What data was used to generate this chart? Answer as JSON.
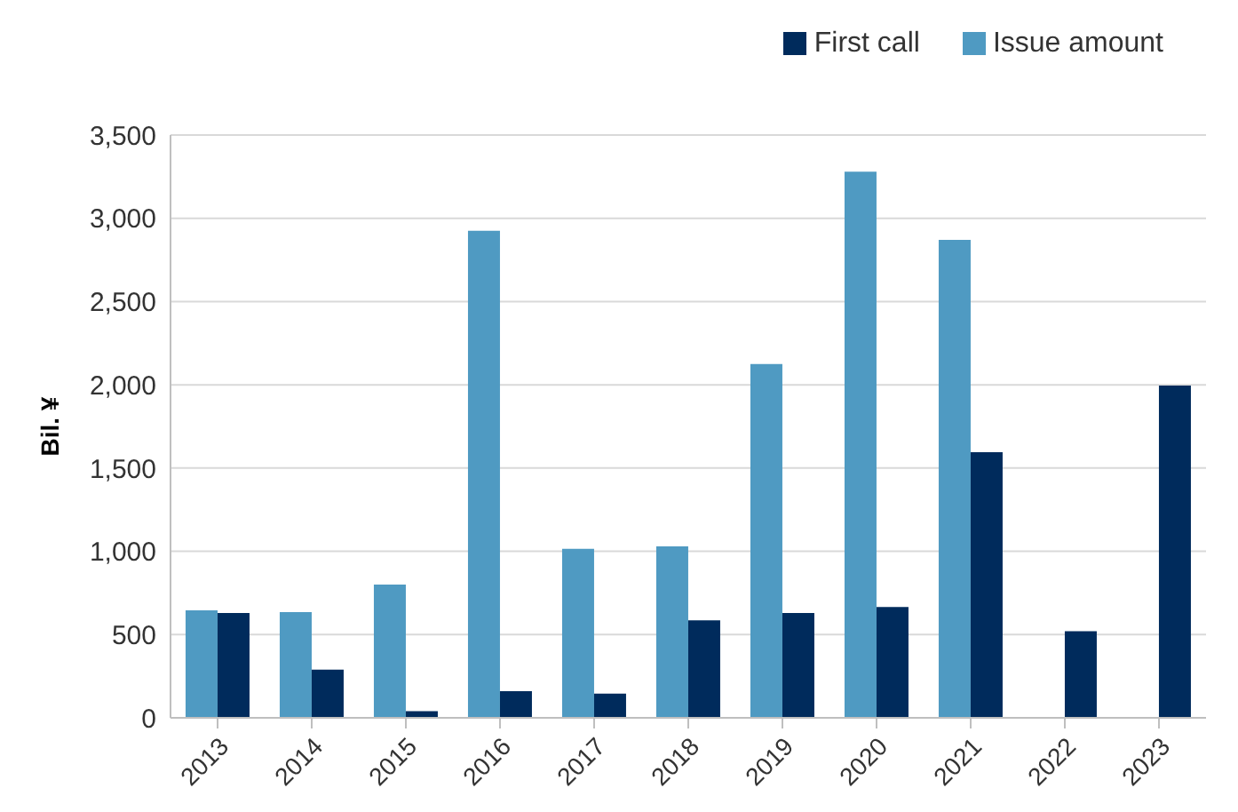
{
  "chart_data": {
    "type": "bar",
    "ylabel": "Bil. ¥",
    "categories": [
      "2013",
      "2014",
      "2015",
      "2016",
      "2017",
      "2018",
      "2019",
      "2020",
      "2021",
      "2022",
      "2023"
    ],
    "series": [
      {
        "name": "Issue amount",
        "color": "#4f9ac2",
        "values": [
          645,
          635,
          800,
          2925,
          1015,
          1030,
          2125,
          3280,
          2870,
          null,
          null
        ]
      },
      {
        "name": "First call",
        "color": "#002b5c",
        "values": [
          630,
          290,
          40,
          160,
          145,
          585,
          630,
          665,
          1595,
          520,
          1995
        ]
      }
    ],
    "ylim": [
      0,
      3500
    ],
    "yticks": [
      {
        "value": 0,
        "label": "0"
      },
      {
        "value": 500,
        "label": "500"
      },
      {
        "value": 1000,
        "label": "1,000"
      },
      {
        "value": 1500,
        "label": "1,500"
      },
      {
        "value": 2000,
        "label": "2,000"
      },
      {
        "value": 2500,
        "label": "2,500"
      },
      {
        "value": 3000,
        "label": "3,000"
      },
      {
        "value": 3500,
        "label": "3,500"
      }
    ],
    "grid": "y",
    "legend": "top right"
  }
}
